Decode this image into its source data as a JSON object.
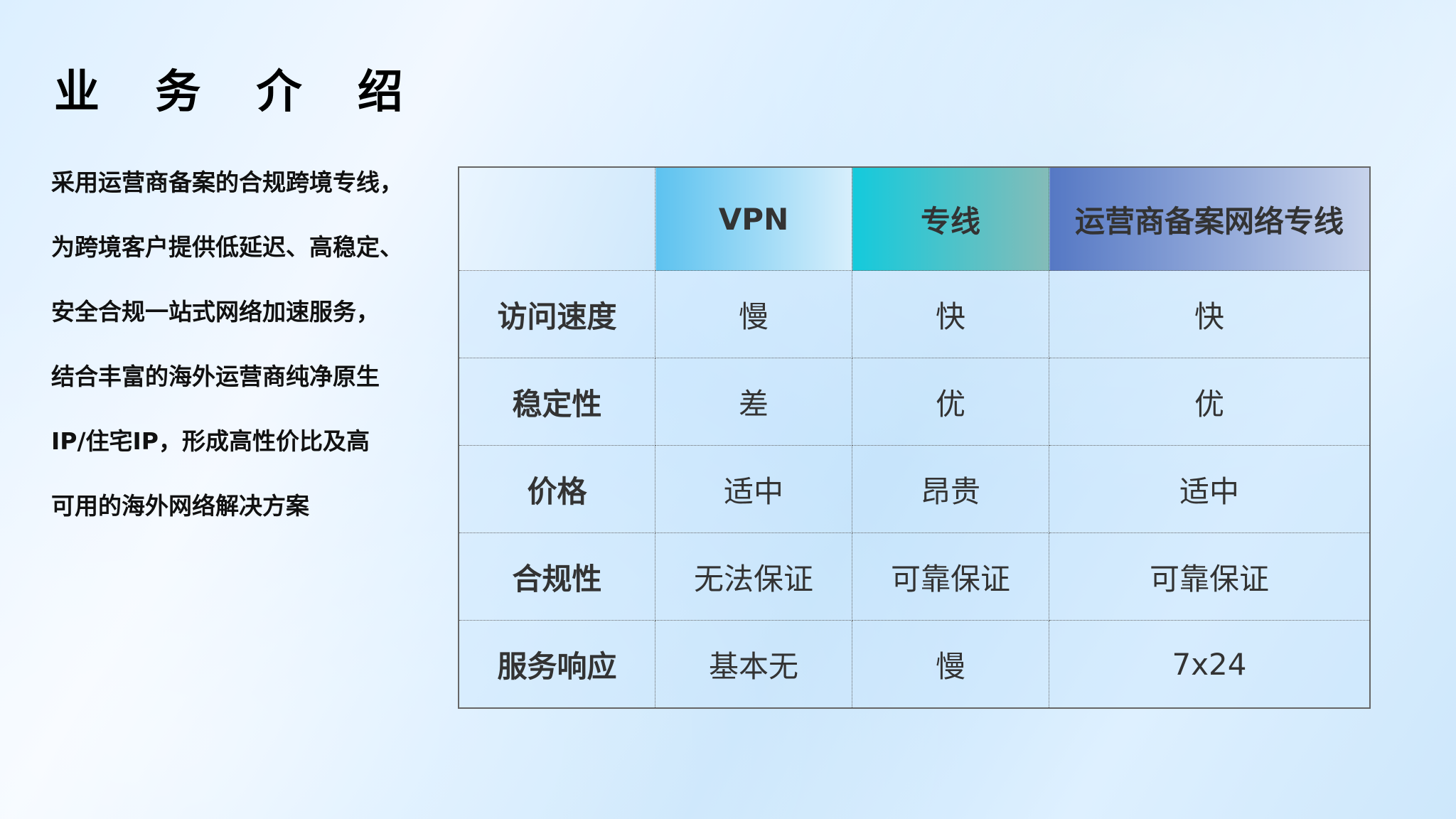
{
  "title": "业 务 介 绍",
  "intro_lines": [
    "采用运营商备案的合规跨境专线，",
    "为跨境客户提供低延迟、高稳定、",
    "安全合规一站式网络加速服务，",
    "结合丰富的海外运营商纯净原生",
    "IP/住宅IP，形成高性价比及高",
    "可用的海外网络解决方案"
  ],
  "table": {
    "headers": [
      "",
      "VPN",
      "专线",
      "运营商备案网络专线"
    ],
    "rows": [
      [
        "访问速度",
        "慢",
        "快",
        "快"
      ],
      [
        "稳定性",
        "差",
        "优",
        "优"
      ],
      [
        "价格",
        "适中",
        "昂贵",
        "适中"
      ],
      [
        "合规性",
        "无法保证",
        "可靠保证",
        "可靠保证"
      ],
      [
        "服务响应",
        "基本无",
        "慢",
        "7x24"
      ]
    ]
  },
  "colors": {
    "vpn_header": "#5cc2ef",
    "line_header": "#14cadc",
    "carrier_header": "#5578c4"
  }
}
